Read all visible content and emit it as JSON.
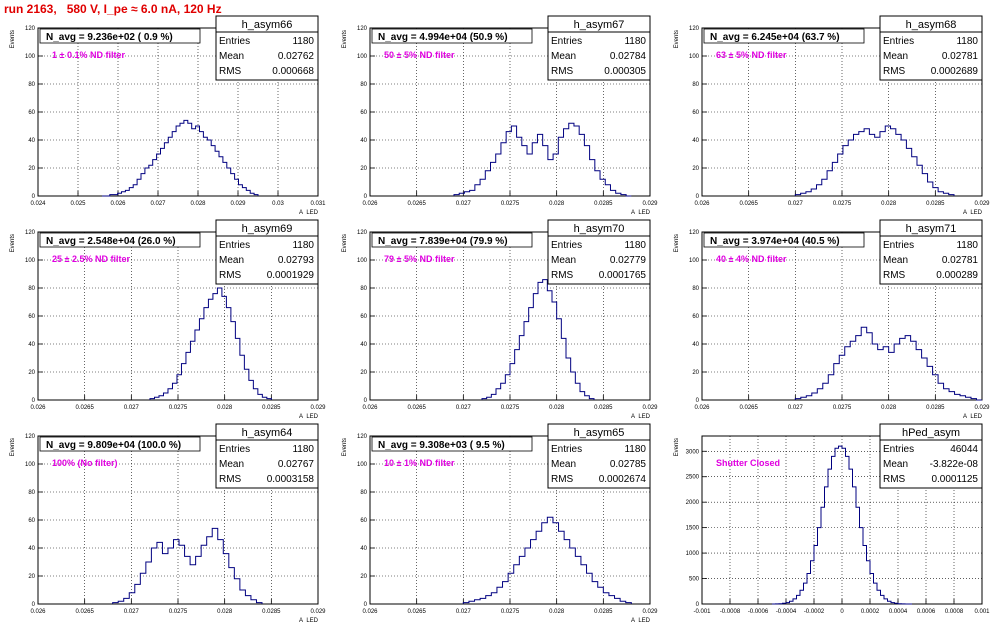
{
  "run_title": "run 2163,   580 V, I_pe ≈ 6.0 nA, 120 Hz",
  "colors": {
    "title": "#e00000",
    "annotation": "#e000e0",
    "histogram": "#000080",
    "axis": "#000000"
  },
  "chart_data": [
    {
      "type": "bar",
      "name": "h_asym66",
      "title": "N_avg = 9.236e+02 ( 0.9 %)",
      "annotation": "1 ± 0.1% ND filter",
      "stats": [
        [
          "Entries",
          "1180"
        ],
        [
          "Mean",
          "0.02762"
        ],
        [
          "RMS",
          "0.000668"
        ]
      ],
      "xlim": [
        0.024,
        0.031
      ],
      "ylim": [
        0,
        120
      ],
      "ylabel": "Events",
      "xlabel": "A_LED",
      "xticks": [
        "0.024",
        "0.025",
        "0.026",
        "0.027",
        "0.028",
        "0.029",
        "0.03",
        "0.031"
      ],
      "xtick_values": [
        0.024,
        0.025,
        0.026,
        0.027,
        0.028,
        0.029,
        0.03,
        0.031
      ],
      "yticks": [
        0,
        20,
        40,
        60,
        80,
        100,
        120
      ],
      "bins": {
        "x0": 0.0256,
        "x1": 0.0295,
        "values": [
          0,
          0,
          1,
          1,
          2,
          3,
          4,
          6,
          8,
          12,
          16,
          20,
          22,
          26,
          30,
          34,
          38,
          42,
          46,
          50,
          52,
          54,
          52,
          48,
          50,
          46,
          42,
          40,
          36,
          32,
          28,
          24,
          20,
          16,
          12,
          8,
          6,
          4,
          2,
          1
        ]
      }
    },
    {
      "type": "bar",
      "name": "h_asym67",
      "title": "N_avg = 4.994e+04 (50.9 %)",
      "annotation": "50 ± 5% ND filter",
      "stats": [
        [
          "Entries",
          "1180"
        ],
        [
          "Mean",
          "0.02784"
        ],
        [
          "RMS",
          "0.000305"
        ]
      ],
      "xlim": [
        0.026,
        0.029
      ],
      "ylim": [
        0,
        120
      ],
      "ylabel": "Events",
      "xlabel": "A_LED",
      "xticks": [
        "0.026",
        "0.0265",
        "0.027",
        "0.0275",
        "0.028",
        "0.0285",
        "0.029"
      ],
      "xtick_values": [
        0.026,
        0.0265,
        0.027,
        0.0275,
        0.028,
        0.0285,
        0.029
      ],
      "yticks": [
        0,
        20,
        40,
        60,
        80,
        100,
        120
      ],
      "bins": {
        "x0": 0.0269,
        "x1": 0.0288,
        "values": [
          1,
          2,
          3,
          4,
          8,
          12,
          18,
          24,
          30,
          38,
          46,
          50,
          42,
          36,
          30,
          38,
          44,
          36,
          26,
          30,
          42,
          48,
          52,
          50,
          44,
          36,
          26,
          18,
          12,
          8,
          4,
          2,
          1,
          0
        ]
      }
    },
    {
      "type": "bar",
      "name": "h_asym68",
      "title": "N_avg = 6.245e+04 (63.7 %)",
      "annotation": "63 ± 5% ND filter",
      "stats": [
        [
          "Entries",
          "1180"
        ],
        [
          "Mean",
          "0.02781"
        ],
        [
          "RMS",
          "0.0002689"
        ]
      ],
      "xlim": [
        0.026,
        0.029
      ],
      "ylim": [
        0,
        120
      ],
      "ylabel": "Events",
      "xlabel": "A_LED",
      "xticks": [
        "0.026",
        "0.0265",
        "0.027",
        "0.0275",
        "0.028",
        "0.0285",
        "0.029"
      ],
      "xtick_values": [
        0.026,
        0.0265,
        0.027,
        0.0275,
        0.028,
        0.0285,
        0.029
      ],
      "yticks": [
        0,
        20,
        40,
        60,
        80,
        100,
        120
      ],
      "bins": {
        "x0": 0.027,
        "x1": 0.0287,
        "values": [
          1,
          2,
          3,
          5,
          8,
          12,
          18,
          24,
          30,
          36,
          40,
          44,
          46,
          48,
          44,
          42,
          46,
          50,
          48,
          44,
          40,
          34,
          28,
          22,
          16,
          10,
          6,
          3,
          2,
          1
        ]
      }
    },
    {
      "type": "bar",
      "name": "h_asym69",
      "title": "N_avg = 2.548e+04 (26.0 %)",
      "annotation": "25 ± 2.5% ND filter",
      "stats": [
        [
          "Entries",
          "1180"
        ],
        [
          "Mean",
          "0.02793"
        ],
        [
          "RMS",
          "0.0001929"
        ]
      ],
      "xlim": [
        0.026,
        0.029
      ],
      "ylim": [
        0,
        120
      ],
      "ylabel": "Events",
      "xlabel": "A_LED",
      "xticks": [
        "0.026",
        "0.0265",
        "0.027",
        "0.0275",
        "0.028",
        "0.0285",
        "0.029"
      ],
      "xtick_values": [
        0.026,
        0.0265,
        0.027,
        0.0275,
        0.028,
        0.0285,
        0.029
      ],
      "yticks": [
        0,
        20,
        40,
        60,
        80,
        100,
        120
      ],
      "bins": {
        "x0": 0.0272,
        "x1": 0.0285,
        "values": [
          1,
          2,
          3,
          5,
          8,
          12,
          18,
          26,
          34,
          42,
          50,
          58,
          66,
          72,
          76,
          80,
          74,
          66,
          56,
          44,
          32,
          22,
          14,
          8,
          4,
          2,
          1
        ]
      }
    },
    {
      "type": "bar",
      "name": "h_asym70",
      "title": "N_avg = 7.839e+04 (79.9 %)",
      "annotation": "79 ± 5% ND filter",
      "stats": [
        [
          "Entries",
          "1180"
        ],
        [
          "Mean",
          "0.02779"
        ],
        [
          "RMS",
          "0.0001765"
        ]
      ],
      "xlim": [
        0.026,
        0.029
      ],
      "ylim": [
        0,
        120
      ],
      "ylabel": "Events",
      "xlabel": "A_LED",
      "xticks": [
        "0.026",
        "0.0265",
        "0.027",
        "0.0275",
        "0.028",
        "0.0285",
        "0.029"
      ],
      "xtick_values": [
        0.026,
        0.0265,
        0.027,
        0.0275,
        0.028,
        0.0285,
        0.029
      ],
      "yticks": [
        0,
        20,
        40,
        60,
        80,
        100,
        120
      ],
      "bins": {
        "x0": 0.0272,
        "x1": 0.0284,
        "values": [
          1,
          2,
          4,
          8,
          12,
          18,
          26,
          36,
          46,
          56,
          66,
          76,
          84,
          86,
          78,
          70,
          58,
          44,
          30,
          20,
          12,
          6,
          3,
          1
        ]
      }
    },
    {
      "type": "bar",
      "name": "h_asym71",
      "title": "N_avg = 3.974e+04 (40.5 %)",
      "annotation": "40 ± 4% ND filter",
      "stats": [
        [
          "Entries",
          "1180"
        ],
        [
          "Mean",
          "0.02781"
        ],
        [
          "RMS",
          "0.000289"
        ]
      ],
      "xlim": [
        0.026,
        0.029
      ],
      "ylim": [
        0,
        120
      ],
      "ylabel": "Events",
      "xlabel": "A_LED",
      "xticks": [
        "0.026",
        "0.0265",
        "0.027",
        "0.0275",
        "0.028",
        "0.0285",
        "0.029"
      ],
      "xtick_values": [
        0.026,
        0.0265,
        0.027,
        0.0275,
        0.028,
        0.0285,
        0.029
      ],
      "yticks": [
        0,
        20,
        40,
        60,
        80,
        100,
        120
      ],
      "bins": {
        "x0": 0.027,
        "x1": 0.029,
        "values": [
          1,
          2,
          3,
          5,
          8,
          12,
          18,
          26,
          32,
          38,
          42,
          46,
          52,
          48,
          40,
          36,
          38,
          34,
          40,
          44,
          46,
          42,
          36,
          30,
          24,
          18,
          12,
          8,
          6,
          4,
          3,
          2,
          1,
          0
        ]
      }
    },
    {
      "type": "bar",
      "name": "h_asym64",
      "title": "N_avg = 9.809e+04 (100.0 %)",
      "annotation": "100% (No filter)",
      "stats": [
        [
          "Entries",
          "1180"
        ],
        [
          "Mean",
          "0.02767"
        ],
        [
          "RMS",
          "0.0003158"
        ]
      ],
      "xlim": [
        0.026,
        0.029
      ],
      "ylim": [
        0,
        120
      ],
      "ylabel": "Events",
      "xlabel": "A_LED",
      "xticks": [
        "0.026",
        "0.0265",
        "0.027",
        "0.0275",
        "0.028",
        "0.0285",
        "0.029"
      ],
      "xtick_values": [
        0.026,
        0.0265,
        0.027,
        0.0275,
        0.028,
        0.0285,
        0.029
      ],
      "yticks": [
        0,
        20,
        40,
        60,
        80,
        100,
        120
      ],
      "bins": {
        "x0": 0.0268,
        "x1": 0.0284,
        "values": [
          1,
          2,
          4,
          8,
          14,
          22,
          30,
          40,
          44,
          36,
          40,
          46,
          42,
          34,
          28,
          34,
          42,
          48,
          54,
          46,
          36,
          26,
          18,
          10,
          6,
          3,
          1
        ]
      }
    },
    {
      "type": "bar",
      "name": "h_asym65",
      "title": "N_avg = 9.308e+03 ( 9.5 %)",
      "annotation": "10 ± 1% ND filter",
      "stats": [
        [
          "Entries",
          "1180"
        ],
        [
          "Mean",
          "0.02785"
        ],
        [
          "RMS",
          "0.0002674"
        ]
      ],
      "xlim": [
        0.026,
        0.029
      ],
      "ylim": [
        0,
        120
      ],
      "ylabel": "Events",
      "xlabel": "A_LED",
      "xticks": [
        "0.026",
        "0.0265",
        "0.027",
        "0.0275",
        "0.028",
        "0.0285",
        "0.029"
      ],
      "xtick_values": [
        0.026,
        0.0265,
        0.027,
        0.0275,
        0.028,
        0.0285,
        0.029
      ],
      "yticks": [
        0,
        20,
        40,
        60,
        80,
        100,
        120
      ],
      "bins": {
        "x0": 0.027,
        "x1": 0.0288,
        "values": [
          1,
          2,
          3,
          4,
          6,
          8,
          12,
          16,
          22,
          28,
          34,
          40,
          46,
          52,
          58,
          62,
          58,
          52,
          46,
          40,
          34,
          28,
          22,
          16,
          12,
          8,
          6,
          4,
          2,
          1
        ]
      }
    },
    {
      "type": "bar",
      "name": "hPed_asym",
      "title": "",
      "annotation": "Shutter Closed",
      "stats": [
        [
          "Entries",
          "46044"
        ],
        [
          "Mean",
          "-3.822e-08"
        ],
        [
          "RMS",
          "0.0001125"
        ]
      ],
      "xlim": [
        -0.001,
        0.001
      ],
      "ylim": [
        0,
        3300
      ],
      "ylabel": "Events",
      "xlabel": "",
      "xticks": [
        "-0.001",
        "-0.0008",
        "-0.0006",
        "-0.0004",
        "-0.0002",
        "0",
        "0.0002",
        "0.0004",
        "0.0006",
        "0.0008",
        "0.001"
      ],
      "xtick_values": [
        -0.001,
        -0.0008,
        -0.0006,
        -0.0004,
        -0.0002,
        0,
        0.0002,
        0.0004,
        0.0006,
        0.0008,
        0.001
      ],
      "yticks": [
        0,
        500,
        1000,
        1500,
        2000,
        2500,
        3000
      ],
      "bins": {
        "x0": -0.0005,
        "x1": 0.0005,
        "values": [
          0,
          2,
          6,
          14,
          28,
          55,
          100,
          170,
          270,
          410,
          600,
          850,
          1150,
          1500,
          1900,
          2300,
          2650,
          2900,
          3060,
          3100,
          3060,
          2900,
          2650,
          2300,
          1900,
          1500,
          1150,
          850,
          600,
          410,
          270,
          170,
          100,
          55,
          28,
          14,
          6,
          2,
          1,
          0
        ]
      }
    }
  ]
}
